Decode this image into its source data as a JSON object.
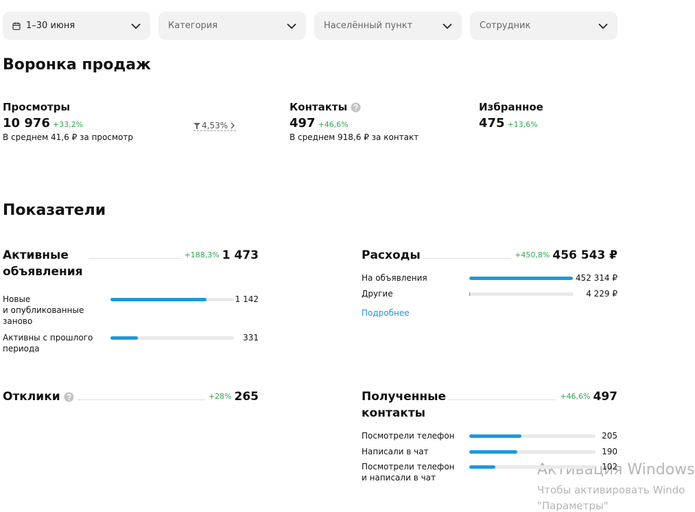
{
  "filters": [
    "1–30 июня",
    "Категория",
    "Населённый пункт",
    "Сотрудник"
  ],
  "funnel": {
    "title": "Воронка продаж",
    "items": [
      {
        "name": "Просмотры",
        "value": "10 976",
        "change": "+33,2%",
        "note": "В среднем 41,6 ₽ за просмотр"
      },
      {
        "name": "Контакты",
        "value": "497",
        "change": "+46,6%",
        "note": "В среднем 918,6 ₽ за контакт"
      },
      {
        "name": "Избранное",
        "value": "475",
        "change": "+13,6%"
      }
    ],
    "conversion": "4,53%"
  },
  "metrics": {
    "title": "Показатели",
    "blocks": [
      {
        "name": "Активные объявления",
        "change": "+188,3%",
        "total": {
          "value": 1473,
          "label": "1 473"
        },
        "rows": [
          {
            "name": "Новые\nи опубликованные\nзаново",
            "value": {
              "value": 1142,
              "label": "1 142"
            }
          },
          {
            "name": "Активны с прошлого периода",
            "value": {
              "value": 331,
              "label": "331"
            }
          }
        ]
      },
      {
        "name": "Расходы",
        "change": "+450,8%",
        "total": {
          "value": 456543,
          "label": "456 543 ₽"
        },
        "rows": [
          {
            "name": "На объявления",
            "value": {
              "value": 452314,
              "label": "452 314 ₽"
            }
          },
          {
            "name": "Другие",
            "value": {
              "value": 4229,
              "label": "4 229 ₽"
            }
          }
        ],
        "link": "Подробнее"
      },
      {
        "name": "Отклики",
        "change": "+28%",
        "total": {
          "value": 265,
          "label": "265"
        },
        "rows": []
      },
      {
        "name": "Полученные контакты",
        "change": "+46,6%",
        "total": {
          "value": 497,
          "label": "497"
        },
        "rows": [
          {
            "name": "Посмотрели телефон",
            "value": {
              "value": 205,
              "label": "205"
            }
          },
          {
            "name": "Написали в чат",
            "value": {
              "value": 190,
              "label": "190"
            }
          },
          {
            "name": "Посмотрели телефон\nи написали в чат",
            "value": {
              "value": 102,
              "label": "102"
            }
          }
        ]
      }
    ]
  },
  "watermark": {
    "title": "Активация Windows",
    "text": "Чтобы активировать Windo",
    "sub": "\"Параметры\""
  }
}
